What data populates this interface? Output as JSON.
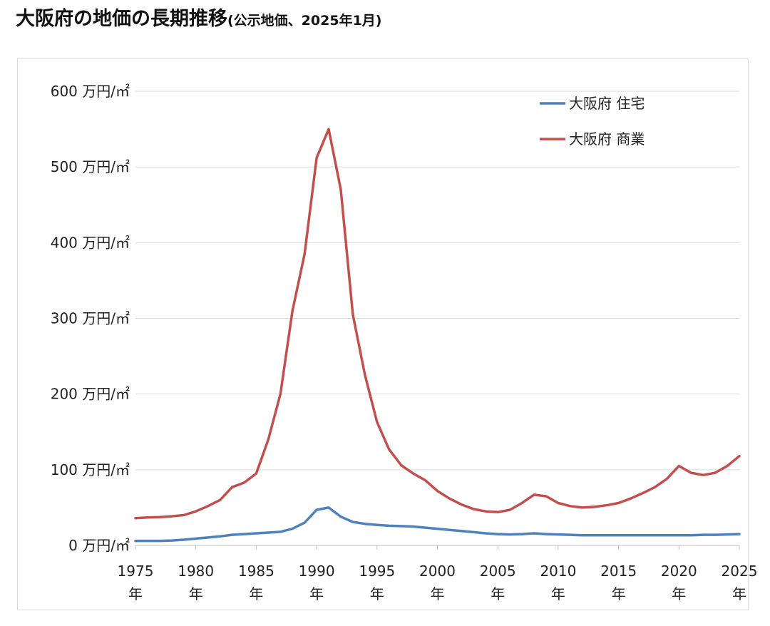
{
  "title": {
    "main": "大阪府の地価の長期推移",
    "sub": "(公示地価、2025年1月)"
  },
  "chart_data": {
    "type": "line",
    "unit": "万円/㎡",
    "year_suffix": "年",
    "ylim": [
      0,
      600
    ],
    "y_ticks": [
      0,
      100,
      200,
      300,
      400,
      500,
      600
    ],
    "y_tick_labels": [
      "0 万円/㎡",
      "100 万円/㎡",
      "200 万円/㎡",
      "300 万円/㎡",
      "400 万円/㎡",
      "500 万円/㎡",
      "600 万円/㎡"
    ],
    "x_ticks": [
      1975,
      1980,
      1985,
      1990,
      1995,
      2000,
      2005,
      2010,
      2015,
      2020,
      2025
    ],
    "xlim": [
      1975,
      2025
    ],
    "grid": true,
    "legend_position": "top-right",
    "x": [
      1975,
      1976,
      1977,
      1978,
      1979,
      1980,
      1981,
      1982,
      1983,
      1984,
      1985,
      1986,
      1987,
      1988,
      1989,
      1990,
      1991,
      1992,
      1993,
      1994,
      1995,
      1996,
      1997,
      1998,
      1999,
      2000,
      2001,
      2002,
      2003,
      2004,
      2005,
      2006,
      2007,
      2008,
      2009,
      2010,
      2011,
      2012,
      2013,
      2014,
      2015,
      2016,
      2017,
      2018,
      2019,
      2020,
      2021,
      2022,
      2023,
      2024,
      2025
    ],
    "series": [
      {
        "name": "大阪府 住宅",
        "color": "#4f81bd",
        "values": [
          6,
          6,
          6,
          6.5,
          7.5,
          9,
          10.5,
          12,
          14,
          15,
          16,
          17,
          18,
          22,
          30,
          47,
          50,
          38,
          31,
          28.5,
          27,
          26,
          25.5,
          25,
          23.5,
          22,
          20.5,
          19,
          17.5,
          16,
          15,
          14.5,
          15,
          16,
          15,
          14.5,
          14,
          13.5,
          13.5,
          13.5,
          13.5,
          13.5,
          13.5,
          13.5,
          13.5,
          13.5,
          13.5,
          14,
          14,
          14.5,
          15
        ]
      },
      {
        "name": "大阪府 商業",
        "color": "#c0504d",
        "values": [
          36,
          37,
          37.5,
          38.5,
          40,
          45,
          52,
          60,
          77,
          83,
          95,
          140,
          200,
          310,
          385,
          512,
          550,
          470,
          305,
          225,
          163,
          127,
          106,
          95,
          86,
          72,
          62,
          54,
          48,
          45,
          44,
          47,
          56,
          67,
          65,
          56,
          52,
          50,
          51,
          53,
          56,
          62,
          69,
          77,
          88,
          105,
          96,
          93,
          96,
          105,
          118
        ]
      }
    ]
  }
}
